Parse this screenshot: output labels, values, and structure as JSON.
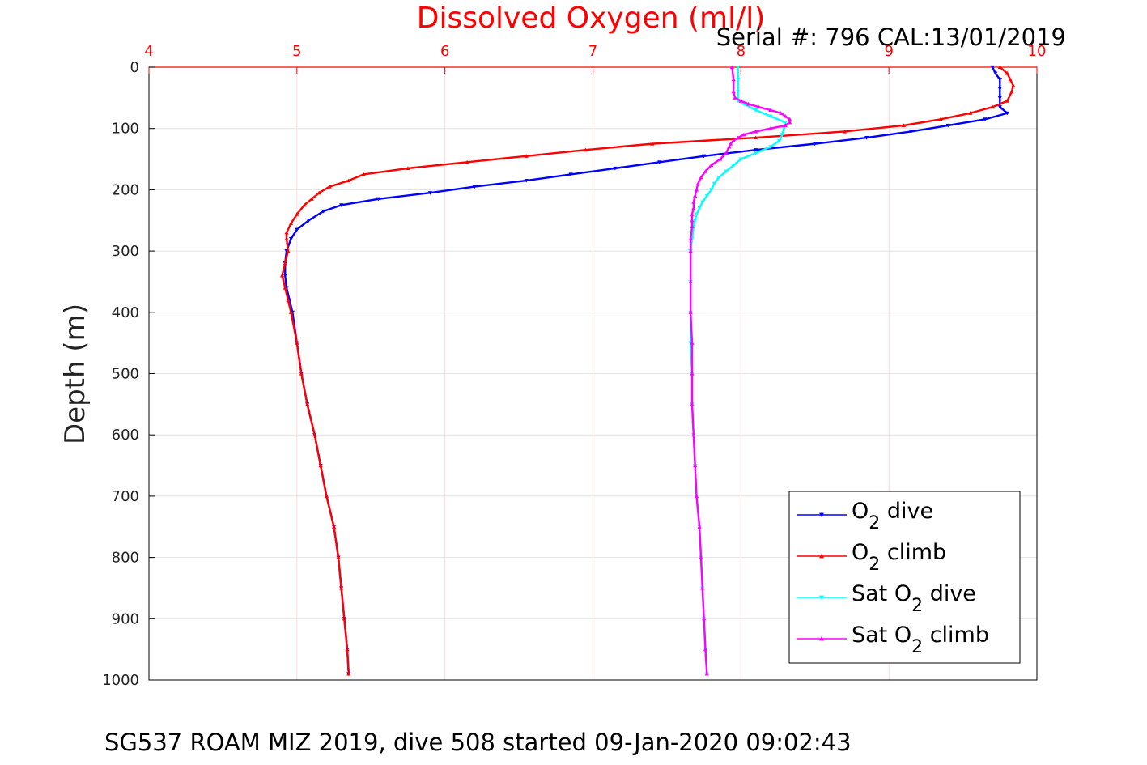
{
  "chart_data": {
    "type": "scatter",
    "title": "Dissolved Oxygen (ml/l)",
    "subtitle": "Serial #: 796  CAL:13/01/2019",
    "ylabel": "Depth (m)",
    "caption": "SG537 ROAM MIZ 2019, dive 508 started 09-Jan-2020 09:02:43",
    "xlim": [
      4,
      10
    ],
    "ylim": [
      0,
      1000
    ],
    "y_reversed": true,
    "x_axis_location": "top",
    "grid": true,
    "legend_position": "bottom-right",
    "x_ticks": [
      "4",
      "5",
      "6",
      "7",
      "8",
      "9",
      "10"
    ],
    "y_ticks": [
      "0",
      "100",
      "200",
      "300",
      "400",
      "500",
      "600",
      "700",
      "800",
      "900",
      "1000"
    ],
    "colors": {
      "title": "#ff0000",
      "x_ticks": "#ff0000",
      "grid": "#ffd6dc"
    },
    "series": [
      {
        "name": "O2 dive",
        "legend_main": "O",
        "legend_sub": "2",
        "legend_post": " dive",
        "color": "#0000ff",
        "marker": "triangle-down",
        "depth": [
          0,
          10,
          20,
          35,
          50,
          65,
          75,
          85,
          95,
          105,
          115,
          125,
          135,
          145,
          155,
          165,
          175,
          185,
          195,
          205,
          215,
          225,
          235,
          250,
          265,
          280,
          300,
          320,
          340,
          360,
          380,
          400,
          450,
          500,
          550,
          600,
          650,
          700,
          750,
          800,
          850,
          900,
          950,
          990
        ],
        "o2": [
          9.7,
          9.72,
          9.75,
          9.75,
          9.75,
          9.75,
          9.8,
          9.65,
          9.4,
          9.15,
          8.85,
          8.5,
          8.1,
          7.75,
          7.45,
          7.15,
          6.85,
          6.55,
          6.2,
          5.9,
          5.55,
          5.3,
          5.18,
          5.08,
          5.0,
          4.96,
          4.93,
          4.92,
          4.92,
          4.93,
          4.95,
          4.97,
          5.0,
          5.03,
          5.07,
          5.12,
          5.16,
          5.2,
          5.25,
          5.28,
          5.3,
          5.32,
          5.34,
          5.35
        ]
      },
      {
        "name": "O2 climb",
        "legend_main": "O",
        "legend_sub": "2",
        "legend_post": " climb",
        "color": "#ff0000",
        "marker": "triangle-up",
        "depth": [
          0,
          10,
          20,
          30,
          40,
          55,
          65,
          75,
          85,
          95,
          105,
          115,
          125,
          135,
          145,
          155,
          165,
          175,
          185,
          195,
          205,
          215,
          225,
          240,
          255,
          270,
          280,
          300,
          320,
          340,
          360,
          380,
          400,
          450,
          500,
          550,
          600,
          650,
          700,
          750,
          800,
          850,
          900,
          950,
          990
        ],
        "o2": [
          9.75,
          9.8,
          9.82,
          9.84,
          9.83,
          9.8,
          9.7,
          9.55,
          9.35,
          9.1,
          8.7,
          8.1,
          7.4,
          6.95,
          6.55,
          6.15,
          5.75,
          5.45,
          5.35,
          5.22,
          5.15,
          5.1,
          5.05,
          5.0,
          4.96,
          4.93,
          4.93,
          4.94,
          4.92,
          4.9,
          4.92,
          4.94,
          4.96,
          5.0,
          5.03,
          5.07,
          5.12,
          5.16,
          5.2,
          5.25,
          5.28,
          5.3,
          5.32,
          5.34,
          5.35
        ]
      },
      {
        "name": "Sat O2 dive",
        "legend_main": "Sat O",
        "legend_sub": "2",
        "legend_post": " dive",
        "color": "#00ffff",
        "marker": "triangle-down",
        "depth": [
          0,
          20,
          40,
          55,
          60,
          70,
          80,
          90,
          100,
          110,
          120,
          130,
          140,
          150,
          160,
          170,
          180,
          190,
          200,
          210,
          220,
          230,
          240,
          250,
          260,
          280,
          300,
          350,
          400,
          450,
          500,
          550,
          600,
          650,
          700,
          750,
          800,
          850,
          900,
          950,
          990
        ],
        "o2": [
          7.98,
          7.98,
          7.98,
          7.98,
          8.02,
          8.1,
          8.2,
          8.3,
          8.29,
          8.28,
          8.26,
          8.2,
          8.1,
          8.0,
          7.95,
          7.9,
          7.85,
          7.82,
          7.8,
          7.77,
          7.74,
          7.72,
          7.7,
          7.69,
          7.68,
          7.67,
          7.66,
          7.66,
          7.66,
          7.66,
          7.67,
          7.67,
          7.68,
          7.69,
          7.7,
          7.72,
          7.73,
          7.74,
          7.75,
          7.76,
          7.77
        ]
      },
      {
        "name": "Sat O2 climb",
        "legend_main": "Sat O",
        "legend_sub": "2",
        "legend_post": " climb",
        "color": "#ff00ff",
        "marker": "triangle-up",
        "depth": [
          0,
          20,
          40,
          50,
          55,
          60,
          65,
          70,
          75,
          80,
          85,
          90,
          95,
          100,
          105,
          110,
          115,
          120,
          125,
          130,
          140,
          150,
          160,
          170,
          180,
          190,
          200,
          210,
          220,
          230,
          240,
          250,
          260,
          280,
          300,
          350,
          400,
          450,
          500,
          550,
          600,
          650,
          700,
          750,
          800,
          850,
          900,
          950,
          990
        ],
        "o2": [
          7.94,
          7.95,
          7.95,
          7.96,
          8.0,
          8.05,
          8.12,
          8.2,
          8.27,
          8.3,
          8.33,
          8.33,
          8.3,
          8.2,
          8.1,
          8.02,
          7.98,
          7.95,
          7.93,
          7.92,
          7.9,
          7.86,
          7.8,
          7.76,
          7.73,
          7.71,
          7.7,
          7.69,
          7.68,
          7.68,
          7.67,
          7.67,
          7.67,
          7.66,
          7.66,
          7.66,
          7.66,
          7.67,
          7.67,
          7.67,
          7.68,
          7.69,
          7.7,
          7.72,
          7.73,
          7.74,
          7.75,
          7.76,
          7.77
        ]
      }
    ]
  }
}
